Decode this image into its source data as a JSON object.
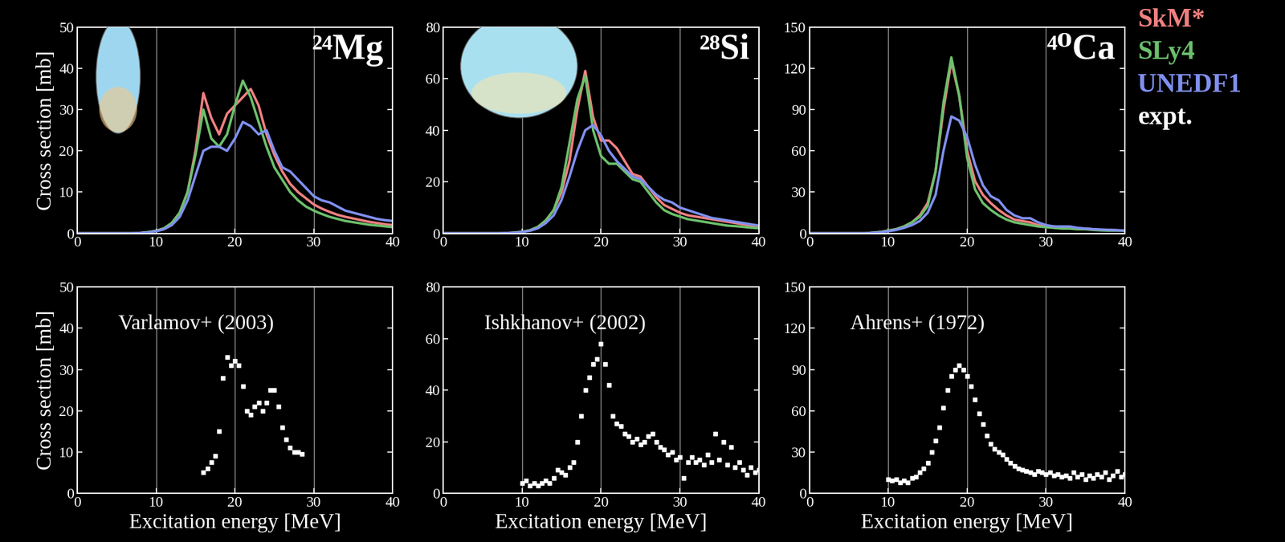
{
  "chart_data": [
    {
      "type": "line",
      "title": "²⁴Mg",
      "ylabel": "Cross section [mb]",
      "xlim": [
        0,
        40
      ],
      "xticks": [
        0,
        10,
        20,
        30,
        40
      ],
      "ylim": [
        0,
        50
      ],
      "yticks": [
        0,
        10,
        20,
        30,
        40,
        50
      ],
      "grid": true,
      "x": [
        0,
        1,
        2,
        3,
        4,
        5,
        6,
        7,
        8,
        9,
        10,
        11,
        12,
        13,
        14,
        15,
        16,
        17,
        18,
        19,
        20,
        21,
        22,
        23,
        24,
        25,
        26,
        27,
        28,
        29,
        30,
        31,
        32,
        33,
        34,
        35,
        36,
        37,
        38,
        39,
        40
      ],
      "series": [
        {
          "name": "SkM*",
          "color": "#f08080",
          "line_style": "solid",
          "values": [
            0,
            0,
            0,
            0,
            0,
            0,
            0,
            0,
            0.1,
            0.3,
            0.6,
            1.2,
            2.5,
            5,
            10,
            20,
            34,
            28,
            24,
            29,
            31,
            33,
            35,
            31,
            24,
            19,
            15,
            12,
            10,
            8.5,
            7,
            6,
            5.2,
            4.5,
            4,
            3.6,
            3.2,
            2.8,
            2.5,
            2.2,
            2
          ]
        },
        {
          "name": "SLy4",
          "color": "#6cc06c",
          "line_style": "solid",
          "values": [
            0,
            0,
            0,
            0,
            0,
            0,
            0,
            0,
            0.1,
            0.3,
            0.6,
            1.2,
            2.5,
            5,
            10,
            19,
            30,
            23,
            21,
            24,
            31,
            37,
            33,
            27,
            21,
            16,
            13,
            10,
            8,
            6.5,
            5.5,
            4.7,
            4,
            3.5,
            3,
            2.7,
            2.4,
            2.1,
            1.9,
            1.7,
            1.5
          ]
        },
        {
          "name": "UNEDF1",
          "color": "#8090f0",
          "line_style": "solid",
          "values": [
            0,
            0,
            0,
            0,
            0,
            0,
            0,
            0,
            0.1,
            0.2,
            0.5,
            1,
            2,
            4,
            8,
            14,
            20,
            21,
            21,
            20,
            23,
            27,
            26,
            24,
            25,
            20,
            16,
            15,
            13,
            11,
            9,
            8,
            7.5,
            6.5,
            5.5,
            5,
            4.5,
            4,
            3.5,
            3.2,
            3
          ]
        }
      ]
    },
    {
      "type": "line",
      "title": "²⁸Si",
      "xlim": [
        0,
        40
      ],
      "xticks": [
        0,
        10,
        20,
        30,
        40
      ],
      "ylim": [
        0,
        80
      ],
      "yticks": [
        0,
        20,
        40,
        60,
        80
      ],
      "grid": true,
      "x": [
        0,
        1,
        2,
        3,
        4,
        5,
        6,
        7,
        8,
        9,
        10,
        11,
        12,
        13,
        14,
        15,
        16,
        17,
        18,
        19,
        20,
        21,
        22,
        23,
        24,
        25,
        26,
        27,
        28,
        29,
        30,
        31,
        32,
        33,
        34,
        35,
        36,
        37,
        38,
        39,
        40
      ],
      "series": [
        {
          "name": "SkM*",
          "color": "#f08080",
          "line_style": "solid",
          "values": [
            0,
            0,
            0,
            0,
            0,
            0,
            0,
            0,
            0.1,
            0.3,
            0.6,
            1.2,
            2.5,
            5,
            9,
            16,
            28,
            48,
            63,
            45,
            36,
            36,
            33,
            28,
            23,
            22,
            18,
            14,
            11,
            9.5,
            8,
            7,
            6.5,
            6,
            5.5,
            5,
            4.5,
            4,
            3.5,
            3,
            2.8
          ]
        },
        {
          "name": "SLy4",
          "color": "#6cc06c",
          "line_style": "solid",
          "values": [
            0,
            0,
            0,
            0,
            0,
            0,
            0,
            0,
            0.1,
            0.3,
            0.6,
            1.2,
            2.5,
            5,
            9,
            18,
            35,
            52,
            61,
            40,
            30,
            27,
            27,
            24,
            21,
            20,
            16,
            12,
            9,
            7.5,
            6.5,
            5.5,
            5,
            4.5,
            4,
            3.5,
            3,
            2.8,
            2.5,
            2.2,
            2
          ]
        },
        {
          "name": "UNEDF1",
          "color": "#8090f0",
          "line_style": "solid",
          "values": [
            0,
            0,
            0,
            0,
            0,
            0,
            0,
            0,
            0.1,
            0.2,
            0.5,
            1,
            2,
            4,
            7,
            13,
            22,
            32,
            40,
            42,
            38,
            32,
            28,
            25,
            22,
            21,
            18,
            15,
            13,
            12,
            10,
            9,
            8,
            7,
            6,
            5.5,
            5,
            4.5,
            4,
            3.5,
            3
          ]
        }
      ]
    },
    {
      "type": "line",
      "title": "⁴⁰Ca",
      "xlim": [
        0,
        40
      ],
      "xticks": [
        0,
        10,
        20,
        30,
        40
      ],
      "ylim": [
        0,
        150
      ],
      "yticks": [
        0,
        30,
        60,
        90,
        120,
        150
      ],
      "grid": true,
      "x": [
        0,
        1,
        2,
        3,
        4,
        5,
        6,
        7,
        8,
        9,
        10,
        11,
        12,
        13,
        14,
        15,
        16,
        17,
        18,
        19,
        20,
        21,
        22,
        23,
        24,
        25,
        26,
        27,
        28,
        29,
        30,
        31,
        32,
        33,
        34,
        35,
        36,
        37,
        38,
        39,
        40
      ],
      "series": [
        {
          "name": "SkM*",
          "color": "#f08080",
          "line_style": "solid",
          "values": [
            0,
            0,
            0,
            0,
            0,
            0,
            0,
            0,
            0.5,
            1,
            2,
            3,
            5,
            8,
            13,
            22,
            45,
            90,
            125,
            100,
            60,
            38,
            28,
            22,
            17,
            13,
            10,
            9,
            8,
            6,
            5,
            5,
            4.5,
            4,
            3.5,
            3.5,
            3,
            2.5,
            2.5,
            2.2,
            2
          ]
        },
        {
          "name": "SLy4",
          "color": "#6cc06c",
          "line_style": "solid",
          "values": [
            0,
            0,
            0,
            0,
            0,
            0,
            0,
            0,
            0.5,
            1,
            2,
            3,
            5,
            8,
            12,
            20,
            45,
            95,
            128,
            100,
            55,
            32,
            22,
            17,
            13,
            10,
            8,
            7,
            6,
            5,
            4.5,
            4,
            3.5,
            3.5,
            3,
            3,
            2.5,
            2.2,
            2,
            2,
            1.8
          ]
        },
        {
          "name": "UNEDF1",
          "color": "#8090f0",
          "line_style": "solid",
          "values": [
            0,
            0,
            0,
            0,
            0,
            0,
            0,
            0,
            0.3,
            0.7,
            1.5,
            2.5,
            4,
            6,
            9,
            15,
            28,
            60,
            85,
            82,
            70,
            50,
            35,
            27,
            24,
            17,
            13,
            11,
            11,
            8,
            6,
            5,
            5,
            5,
            4,
            3.5,
            3,
            2.8,
            2.5,
            2.3,
            2
          ]
        }
      ]
    },
    {
      "type": "scatter",
      "ylabel": "Cross section [mb]",
      "xlabel": "Excitation energy [MeV]",
      "annotation": "Varlamov+ (2003)",
      "xlim": [
        0,
        40
      ],
      "xticks": [
        0,
        10,
        20,
        30,
        40
      ],
      "ylim": [
        0,
        50
      ],
      "yticks": [
        0,
        10,
        20,
        30,
        40,
        50
      ],
      "grid": true,
      "series": [
        {
          "name": "expt.",
          "color": "#ffffff",
          "marker": "square",
          "x": [
            16,
            16.5,
            17,
            17.5,
            18,
            18.5,
            19,
            19.5,
            20,
            20.5,
            21,
            21.5,
            22,
            22.5,
            23,
            23.5,
            24,
            24.5,
            25,
            25.5,
            26,
            26.5,
            27,
            27.5,
            28,
            28.5
          ],
          "values": [
            5,
            6,
            7.5,
            9,
            15,
            28,
            33,
            31,
            32,
            31,
            26,
            20,
            19,
            21,
            22,
            20,
            22,
            25,
            25,
            21,
            16,
            13,
            11,
            10,
            10,
            9.5
          ]
        }
      ]
    },
    {
      "type": "scatter",
      "xlabel": "Excitation energy [MeV]",
      "annotation": "Ishkhanov+ (2002)",
      "xlim": [
        0,
        40
      ],
      "xticks": [
        0,
        10,
        20,
        30,
        40
      ],
      "ylim": [
        0,
        80
      ],
      "yticks": [
        0,
        20,
        40,
        60,
        80
      ],
      "grid": true,
      "series": [
        {
          "name": "expt.",
          "color": "#ffffff",
          "marker": "square",
          "x": [
            10,
            10.5,
            11,
            11.5,
            12,
            12.5,
            13,
            13.5,
            14,
            14.5,
            15,
            15.5,
            16,
            16.5,
            17,
            17.5,
            18,
            18.5,
            19,
            19.5,
            20,
            20.5,
            21,
            21.5,
            22,
            22.5,
            23,
            23.5,
            24,
            24.5,
            25,
            25.5,
            26,
            26.5,
            27,
            27.5,
            28,
            28.5,
            29,
            29.5,
            30,
            30.5,
            31,
            31.5,
            32,
            32.5,
            33,
            33.5,
            34,
            34.5,
            35,
            35.5,
            36,
            36.5,
            37,
            37.5,
            38,
            38.5,
            39,
            39.5,
            40
          ],
          "values": [
            4,
            5,
            3,
            4,
            3,
            4,
            5,
            4,
            6,
            9,
            8,
            7,
            10,
            12,
            20,
            30,
            40,
            45,
            50,
            52,
            58,
            50,
            42,
            30,
            27,
            26,
            23,
            22,
            20,
            21,
            19,
            20,
            22,
            23,
            20,
            18,
            17,
            15,
            16,
            13,
            14,
            6,
            12,
            14,
            12,
            13,
            11,
            15,
            12,
            23,
            13,
            20,
            11,
            18,
            10,
            12,
            9,
            7,
            10,
            8,
            9
          ]
        }
      ]
    },
    {
      "type": "scatter",
      "xlabel": "Excitation energy [MeV]",
      "annotation": "Ahrens+ (1972)",
      "xlim": [
        0,
        40
      ],
      "xticks": [
        0,
        10,
        20,
        30,
        40
      ],
      "ylim": [
        0,
        150
      ],
      "yticks": [
        0,
        30,
        60,
        90,
        120,
        150
      ],
      "grid": true,
      "series": [
        {
          "name": "expt.",
          "color": "#ffffff",
          "marker": "square",
          "x": [
            10,
            10.5,
            11,
            11.5,
            12,
            12.5,
            13,
            13.5,
            14,
            14.5,
            15,
            15.5,
            16,
            16.5,
            17,
            17.5,
            18,
            18.5,
            19,
            19.5,
            20,
            20.5,
            21,
            21.5,
            22,
            22.5,
            23,
            23.5,
            24,
            24.5,
            25,
            25.5,
            26,
            26.5,
            27,
            27.5,
            28,
            28.5,
            29,
            29.5,
            30,
            30.5,
            31,
            31.5,
            32,
            32.5,
            33,
            33.5,
            34,
            34.5,
            35,
            35.5,
            36,
            36.5,
            37,
            37.5,
            38,
            38.5,
            39,
            39.5,
            40
          ],
          "values": [
            10,
            9,
            10,
            8,
            9,
            8,
            11,
            12,
            15,
            18,
            22,
            30,
            38,
            48,
            62,
            75,
            85,
            90,
            93,
            90,
            85,
            78,
            68,
            58,
            50,
            42,
            36,
            32,
            30,
            28,
            25,
            22,
            20,
            18,
            17,
            16,
            15,
            14,
            16,
            15,
            14,
            15,
            13,
            14,
            12,
            13,
            11,
            15,
            12,
            14,
            10,
            13,
            11,
            14,
            12,
            15,
            10,
            13,
            16,
            12,
            14
          ]
        }
      ]
    }
  ]
}
